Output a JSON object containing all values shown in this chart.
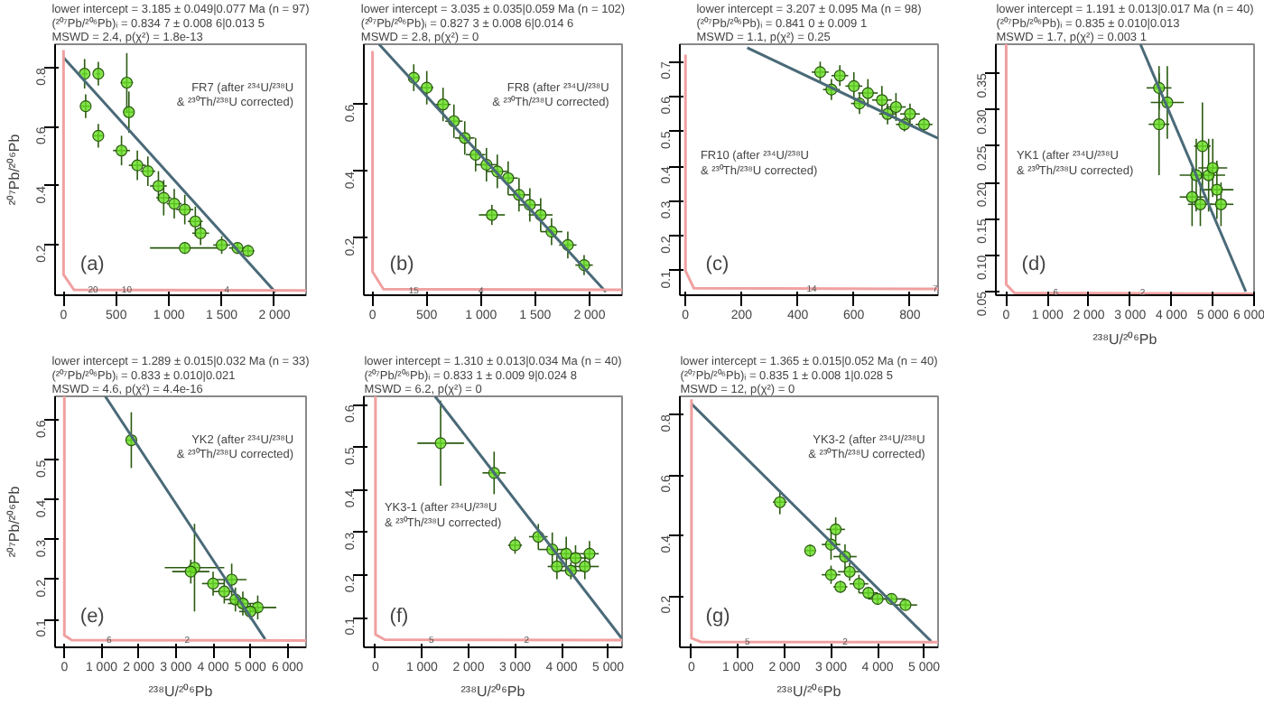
{
  "chart_data": [
    {
      "type": "scatter",
      "title": "lower intercept = 3.185 ± 0.049|0.077 Ma (n = 97)\n(²⁰⁷Pb/²⁰⁶Pb)ᵢ = 0.834 7 ± 0.008 6|0.013 5\nMSWD = 2.4, p(χ²) = 1.8e-13",
      "ylabel": "²⁰⁷Pb/²⁰⁶Pb",
      "annotations": [
        "FR7 (after ²³⁴U/²³⁸U\n& ²³⁰Th/²³⁸U corrected)",
        "(a)",
        {
          "text": "20",
          "x": 280,
          "y": 0.05
        },
        {
          "text": "10",
          "x": 600,
          "y": 0.05
        },
        {
          "text": "4",
          "x": 1550,
          "y": 0.05
        }
      ],
      "xlim": [
        -80,
        2300
      ],
      "ylim": [
        0.03,
        0.88
      ],
      "xticks": [
        0,
        500,
        {
          "value": 1000,
          "label": "1 000"
        },
        {
          "value": 1500,
          "label": "1 500"
        },
        {
          "value": 2000,
          "label": "2 000"
        }
      ],
      "yticks": [
        0.2,
        0.4,
        0.6,
        0.8
      ],
      "series": [
        {
          "type": "scatter",
          "marker": "circle",
          "color": "#66dd22",
          "x": [
            200,
            330,
            210,
            330,
            600,
            620,
            550,
            700,
            800,
            900,
            950,
            1050,
            1150,
            1250,
            1300,
            1150,
            1500,
            1650,
            1750
          ],
          "values": [
            0.78,
            0.78,
            0.67,
            0.57,
            0.75,
            0.65,
            0.52,
            0.47,
            0.45,
            0.4,
            0.36,
            0.34,
            0.32,
            0.28,
            0.24,
            0.19,
            0.2,
            0.19,
            0.18
          ],
          "xerrors": [
            25,
            20,
            40,
            45,
            60,
            50,
            80,
            80,
            70,
            80,
            70,
            70,
            80,
            70,
            80,
            330,
            80,
            80,
            60
          ],
          "errors": [
            0.05,
            0.04,
            0.04,
            0.04,
            0.1,
            0.07,
            0.05,
            0.05,
            0.05,
            0.05,
            0.06,
            0.05,
            0.05,
            0.05,
            0.04,
            0.02,
            0.03,
            0.02,
            0.02
          ]
        },
        {
          "type": "line",
          "color": "#4a6a78",
          "x": [
            0,
            2010
          ],
          "values": [
            0.835,
            0.04
          ]
        },
        {
          "type": "line",
          "color": "#f0a0a0",
          "x": [
            0,
            0,
            100,
            2300
          ],
          "values": [
            0.86,
            0.1,
            0.048,
            0.046
          ]
        }
      ]
    },
    {
      "type": "scatter",
      "title": "lower intercept = 3.035 ± 0.035|0.059 Ma (n = 102)\n(²⁰⁷Pb/²⁰⁶Pb)ᵢ = 0.827 3 ± 0.008 6|0.014 6\nMSWD = 2.8, p(χ²) = 0",
      "annotations": [
        "FR8 (after ²³⁴U/²³⁸U\n& ²³⁰Th/²³⁸U corrected)",
        "(b)",
        {
          "text": "15",
          "x": 380,
          "y": 0.047
        },
        {
          "text": "4",
          "x": 1000,
          "y": 0.047
        }
      ],
      "xlim": [
        -80,
        2300
      ],
      "ylim": [
        0.03,
        0.78
      ],
      "xticks": [
        0,
        500,
        {
          "value": 1000,
          "label": "1 000"
        },
        {
          "value": 1500,
          "label": "1 500"
        },
        {
          "value": 2000,
          "label": "2 000"
        }
      ],
      "yticks": [
        0.2,
        0.4,
        0.6
      ],
      "series": [
        {
          "type": "scatter",
          "marker": "circle",
          "color": "#66dd22",
          "x": [
            380,
            500,
            650,
            750,
            850,
            950,
            1050,
            1150,
            1250,
            1350,
            1450,
            1550,
            1650,
            1800,
            1950,
            1100
          ],
          "values": [
            0.68,
            0.65,
            0.6,
            0.55,
            0.5,
            0.45,
            0.42,
            0.4,
            0.38,
            0.33,
            0.3,
            0.27,
            0.22,
            0.18,
            0.12,
            0.27
          ],
          "xerrors": [
            50,
            60,
            70,
            80,
            90,
            90,
            100,
            100,
            90,
            100,
            100,
            110,
            100,
            80,
            80,
            120
          ],
          "errors": [
            0.04,
            0.05,
            0.05,
            0.05,
            0.05,
            0.05,
            0.05,
            0.05,
            0.05,
            0.05,
            0.05,
            0.05,
            0.04,
            0.04,
            0.03,
            0.03
          ]
        },
        {
          "type": "line",
          "color": "#4a6a78",
          "x": [
            60,
            2150
          ],
          "values": [
            0.78,
            0.04
          ]
        },
        {
          "type": "line",
          "color": "#f0a0a0",
          "x": [
            0,
            0,
            100,
            2300
          ],
          "values": [
            0.76,
            0.1,
            0.048,
            0.046
          ]
        }
      ]
    },
    {
      "type": "scatter",
      "title": "lower intercept = 3.207 ± 0.095 Ma (n = 98)\n(²⁰⁷Pb/²⁰⁶Pb)ᵢ = 0.841 0 ± 0.009 1\nMSWD = 1.1, p(χ²) = 0.25",
      "annotations": [
        "FR10 (after ²³⁴U/²³⁸U\n& ²³⁰Th/²³⁸U corrected)",
        "(c)",
        {
          "text": "14",
          "x": 450,
          "y": 0.05
        },
        {
          "text": "7",
          "x": 890,
          "y": 0.05
        }
      ],
      "xlim": [
        -20,
        900
      ],
      "ylim": [
        0.03,
        0.75
      ],
      "xticks": [
        0,
        200,
        400,
        600,
        800
      ],
      "yticks": [
        0.1,
        0.2,
        0.3,
        0.4,
        0.5,
        0.6,
        0.7
      ],
      "series": [
        {
          "type": "scatter",
          "marker": "circle",
          "color": "#66dd22",
          "x": [
            480,
            550,
            600,
            650,
            700,
            750,
            800,
            850,
            520,
            620,
            720,
            780
          ],
          "values": [
            0.67,
            0.66,
            0.63,
            0.61,
            0.59,
            0.57,
            0.55,
            0.52,
            0.62,
            0.58,
            0.55,
            0.52
          ],
          "xerrors": [
            30,
            30,
            30,
            35,
            35,
            35,
            35,
            30,
            30,
            30,
            30,
            30
          ],
          "errors": [
            0.03,
            0.03,
            0.04,
            0.04,
            0.04,
            0.04,
            0.03,
            0.02,
            0.03,
            0.03,
            0.03,
            0.02
          ]
        },
        {
          "type": "line",
          "color": "#4a6a78",
          "x": [
            220,
            900
          ],
          "values": [
            0.74,
            0.48
          ]
        },
        {
          "type": "line",
          "color": "#f0a0a0",
          "x": [
            0,
            0,
            30,
            900
          ],
          "values": [
            0.72,
            0.1,
            0.05,
            0.048
          ]
        }
      ]
    },
    {
      "type": "scatter",
      "title": "lower intercept = 1.191 ± 0.013|0.017 Ma (n = 40)\n(²⁰⁷Pb/²⁰⁶Pb)ᵢ = 0.835 ± 0.010|0.013\nMSWD = 1.7, p(χ²) = 0.003 1",
      "xlabel": "²³⁸U/²⁰⁶Pb",
      "annotations": [
        "YK1 (after ²³⁴U/²³⁸U\n& ²³⁰Th/²³⁸U corrected)",
        "(d)",
        {
          "text": "6",
          "x": 1200,
          "y": 0.05
        },
        {
          "text": "2",
          "x": 3300,
          "y": 0.05
        }
      ],
      "xlim": [
        -250,
        6000
      ],
      "ylim": [
        0.045,
        0.39
      ],
      "xticks": [
        0,
        {
          "value": 1000,
          "label": "1 000"
        },
        {
          "value": 2000,
          "label": "2 000"
        },
        {
          "value": 3000,
          "label": "3 000"
        },
        {
          "value": 4000,
          "label": "4 000"
        },
        {
          "value": 5000,
          "label": "5 000"
        },
        {
          "value": 6000,
          "label": "6 000"
        }
      ],
      "yticks": [
        {
          "value": 0.05,
          "label": "0.05"
        },
        {
          "value": 0.1,
          "label": "0.10"
        },
        {
          "value": 0.15,
          "label": "0.15"
        },
        {
          "value": 0.2,
          "label": "0.20"
        },
        {
          "value": 0.25,
          "label": "0.25"
        },
        {
          "value": 0.3,
          "label": "0.30"
        },
        {
          "value": 0.35,
          "label": "0.35"
        }
      ],
      "series": [
        {
          "type": "scatter",
          "marker": "circle",
          "color": "#66dd22",
          "x": [
            3700,
            3900,
            3700,
            4750,
            4600,
            4900,
            5100,
            5200,
            4700,
            5000,
            4500
          ],
          "values": [
            0.33,
            0.31,
            0.28,
            0.25,
            0.21,
            0.21,
            0.19,
            0.17,
            0.17,
            0.22,
            0.18
          ],
          "xerrors": [
            300,
            400,
            250,
            200,
            400,
            400,
            400,
            300,
            300,
            350,
            300
          ],
          "errors": [
            0.03,
            0.05,
            0.07,
            0.06,
            0.05,
            0.05,
            0.04,
            0.03,
            0.03,
            0.04,
            0.04
          ]
        },
        {
          "type": "line",
          "color": "#4a6a78",
          "x": [
            3250,
            5800
          ],
          "values": [
            0.39,
            0.05
          ]
        },
        {
          "type": "line",
          "color": "#f0a0a0",
          "x": [
            0,
            0,
            200,
            6000
          ],
          "values": [
            0.39,
            0.06,
            0.048,
            0.047
          ]
        }
      ]
    },
    {
      "type": "scatter",
      "title": "lower intercept = 1.289 ± 0.015|0.032 Ma (n = 33)\n(²⁰⁷Pb/²⁰⁶Pb)ᵢ = 0.833 ± 0.010|0.021\nMSWD = 4.6, p(χ²) = 4.4e-16",
      "xlabel": "²³⁸U/²⁰⁶Pb",
      "ylabel": "²⁰⁷Pb/²⁰⁶Pb",
      "annotations": [
        "YK2 (after ²³⁴U/²³⁸U\n& ²³⁰Th/²³⁸U corrected)",
        "(e)",
        {
          "text": "6",
          "x": 1200,
          "y": 0.05
        },
        {
          "text": "2",
          "x": 3300,
          "y": 0.05
        }
      ],
      "xlim": [
        -250,
        6500
      ],
      "ylim": [
        0.03,
        0.66
      ],
      "xticks": [
        0,
        {
          "value": 1000,
          "label": "1 000"
        },
        {
          "value": 2000,
          "label": "2 000"
        },
        {
          "value": 3000,
          "label": "3 000"
        },
        {
          "value": 4000,
          "label": "4 000"
        },
        {
          "value": 5000,
          "label": "5 000"
        },
        {
          "value": 6000,
          "label": "6 000"
        }
      ],
      "yticks": [
        0.1,
        0.2,
        0.3,
        0.4,
        0.5,
        0.6
      ],
      "series": [
        {
          "type": "scatter",
          "marker": "circle",
          "color": "#66dd22",
          "x": [
            1800,
            3500,
            3400,
            4000,
            4300,
            4600,
            4800,
            5200,
            4500,
            5000
          ],
          "values": [
            0.55,
            0.23,
            0.22,
            0.19,
            0.17,
            0.15,
            0.14,
            0.13,
            0.2,
            0.12
          ],
          "xerrors": [
            150,
            800,
            500,
            300,
            300,
            300,
            400,
            500,
            400,
            300
          ],
          "errors": [
            0.07,
            0.11,
            0.03,
            0.03,
            0.03,
            0.03,
            0.03,
            0.03,
            0.04,
            0.02
          ]
        },
        {
          "type": "line",
          "color": "#4a6a78",
          "x": [
            1100,
            5400
          ],
          "values": [
            0.66,
            0.05
          ]
        },
        {
          "type": "line",
          "color": "#f0a0a0",
          "x": [
            0,
            0,
            200,
            6500
          ],
          "values": [
            0.66,
            0.06,
            0.048,
            0.047
          ]
        }
      ]
    },
    {
      "type": "scatter",
      "title": "lower intercept = 1.310 ± 0.013|0.034 Ma (n = 40)\n(²⁰⁷Pb/²⁰⁶Pb)ᵢ = 0.833 1 ± 0.009 9|0.024 8\nMSWD = 6.2, p(χ²) = 0",
      "xlabel": "²³⁸U/²⁰⁶Pb",
      "annotations": [
        "YK3-1 (after ²³⁴U/²³⁸U\n& ²³⁰Th/²³⁸U corrected)",
        "(f)",
        {
          "text": "5",
          "x": 1200,
          "y": 0.05
        },
        {
          "text": "2",
          "x": 3250,
          "y": 0.05
        }
      ],
      "xlim": [
        -250,
        5300
      ],
      "ylim": [
        0.03,
        0.62
      ],
      "xticks": [
        0,
        {
          "value": 1000,
          "label": "1 000"
        },
        {
          "value": 2000,
          "label": "2 000"
        },
        {
          "value": 3000,
          "label": "3 000"
        },
        {
          "value": 4000,
          "label": "4 000"
        },
        {
          "value": 5000,
          "label": "5 000"
        }
      ],
      "yticks": [
        0.1,
        0.2,
        0.3,
        0.4,
        0.5,
        0.6
      ],
      "series": [
        {
          "type": "scatter",
          "marker": "circle",
          "color": "#66dd22",
          "x": [
            1400,
            2550,
            3000,
            3500,
            3800,
            4100,
            4300,
            4500,
            4200,
            3900,
            4600
          ],
          "values": [
            0.51,
            0.44,
            0.27,
            0.29,
            0.26,
            0.25,
            0.24,
            0.22,
            0.21,
            0.22,
            0.25
          ],
          "xerrors": [
            500,
            250,
            150,
            200,
            300,
            300,
            300,
            300,
            300,
            200,
            200
          ],
          "errors": [
            0.1,
            0.05,
            0.02,
            0.03,
            0.04,
            0.04,
            0.03,
            0.03,
            0.02,
            0.03,
            0.03
          ]
        },
        {
          "type": "line",
          "color": "#4a6a78",
          "x": [
            1280,
            5300
          ],
          "values": [
            0.62,
            0.05
          ]
        },
        {
          "type": "line",
          "color": "#f0a0a0",
          "x": [
            0,
            0,
            200,
            5300
          ],
          "values": [
            0.62,
            0.06,
            0.048,
            0.047
          ]
        }
      ]
    },
    {
      "type": "scatter",
      "title": "lower intercept = 1.365 ± 0.015|0.052 Ma (n = 40)\n(²⁰⁷Pb/²⁰⁶Pb)ᵢ = 0.835 1 ± 0.008 1|0.028 5\nMSWD = 12, p(χ²) = 0",
      "xlabel": "²³⁸U/²⁰⁶Pb",
      "annotations": [
        "YK3-2 (after ²³⁴U/²³⁸U\n& ²³⁰Th/²³⁸U corrected)",
        "(g)",
        {
          "text": "5",
          "x": 1200,
          "y": 0.05
        },
        {
          "text": "2",
          "x": 3300,
          "y": 0.05
        }
      ],
      "xlim": [
        -250,
        5300
      ],
      "ylim": [
        0.03,
        0.86
      ],
      "xticks": [
        0,
        {
          "value": 1000,
          "label": "1 000"
        },
        {
          "value": 2000,
          "label": "2 000"
        },
        {
          "value": 3000,
          "label": "3 000"
        },
        {
          "value": 4000,
          "label": "4 000"
        },
        {
          "value": 5000,
          "label": "5 000"
        }
      ],
      "yticks": [
        0.2,
        0.4,
        0.6,
        0.8
      ],
      "series": [
        {
          "type": "scatter",
          "marker": "circle",
          "color": "#66dd22",
          "x": [
            1900,
            2550,
            3100,
            3300,
            3000,
            3400,
            3600,
            3800,
            4000,
            4300,
            4600,
            3000,
            3200
          ],
          "values": [
            0.51,
            0.35,
            0.42,
            0.33,
            0.27,
            0.28,
            0.24,
            0.21,
            0.19,
            0.19,
            0.17,
            0.37,
            0.23
          ],
          "xerrors": [
            150,
            100,
            200,
            250,
            200,
            250,
            200,
            200,
            200,
            300,
            250,
            200,
            150
          ],
          "errors": [
            0.04,
            0.02,
            0.04,
            0.04,
            0.03,
            0.03,
            0.03,
            0.02,
            0.02,
            0.015,
            0.015,
            0.05,
            0.02
          ]
        },
        {
          "type": "line",
          "color": "#4a6a78",
          "x": [
            0,
            5150
          ],
          "values": [
            0.835,
            0.05
          ]
        },
        {
          "type": "line",
          "color": "#f0a0a0",
          "x": [
            0,
            0,
            200,
            5300
          ],
          "values": [
            0.85,
            0.06,
            0.048,
            0.047
          ]
        }
      ]
    }
  ]
}
